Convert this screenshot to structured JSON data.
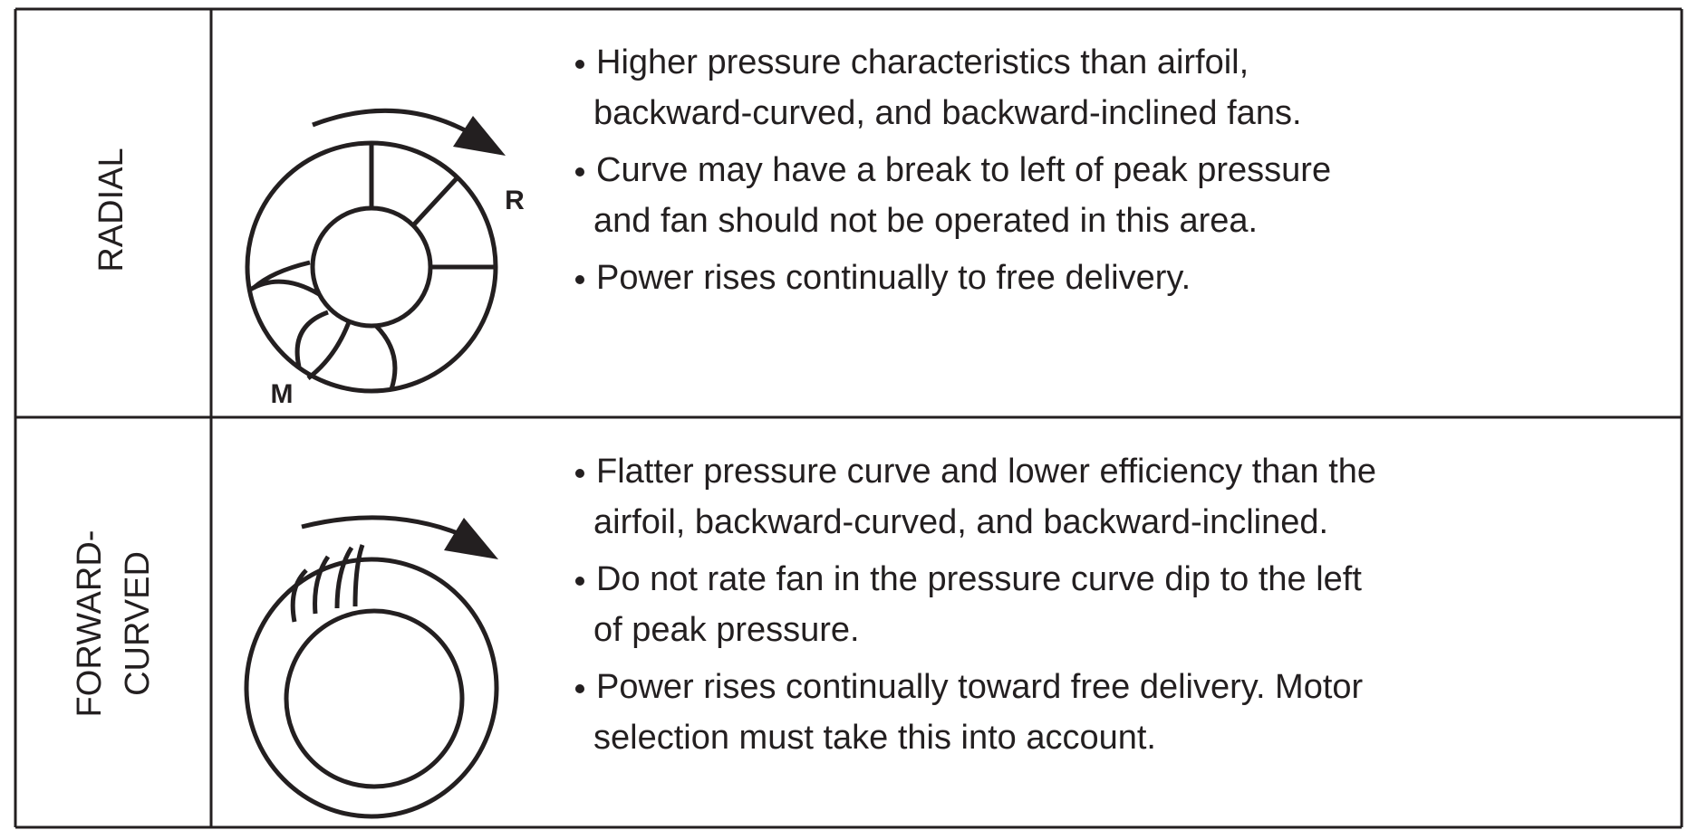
{
  "table": {
    "rows": [
      {
        "label": [
          "RADIAL"
        ],
        "diagram_labels": [
          "R",
          "M"
        ],
        "bullets": [
          [
            "Higher pressure characteristics than airfoil,",
            "backward-curved, and backward-inclined fans."
          ],
          [
            "Curve may have a break to left of peak pressure",
            "and fan should not be operated in this area."
          ],
          [
            "Power rises continually to free delivery."
          ]
        ]
      },
      {
        "label": [
          "FORWARD-",
          "CURVED"
        ],
        "diagram_labels": [],
        "bullets": [
          [
            "Flatter pressure curve and lower efficiency than the",
            "airfoil, backward-curved, and backward-inclined."
          ],
          [
            "Do not rate fan in the pressure curve dip to the left",
            "of peak pressure."
          ],
          [
            "Power rises continually toward free delivery. Motor",
            "selection must take this into account."
          ]
        ]
      }
    ]
  }
}
